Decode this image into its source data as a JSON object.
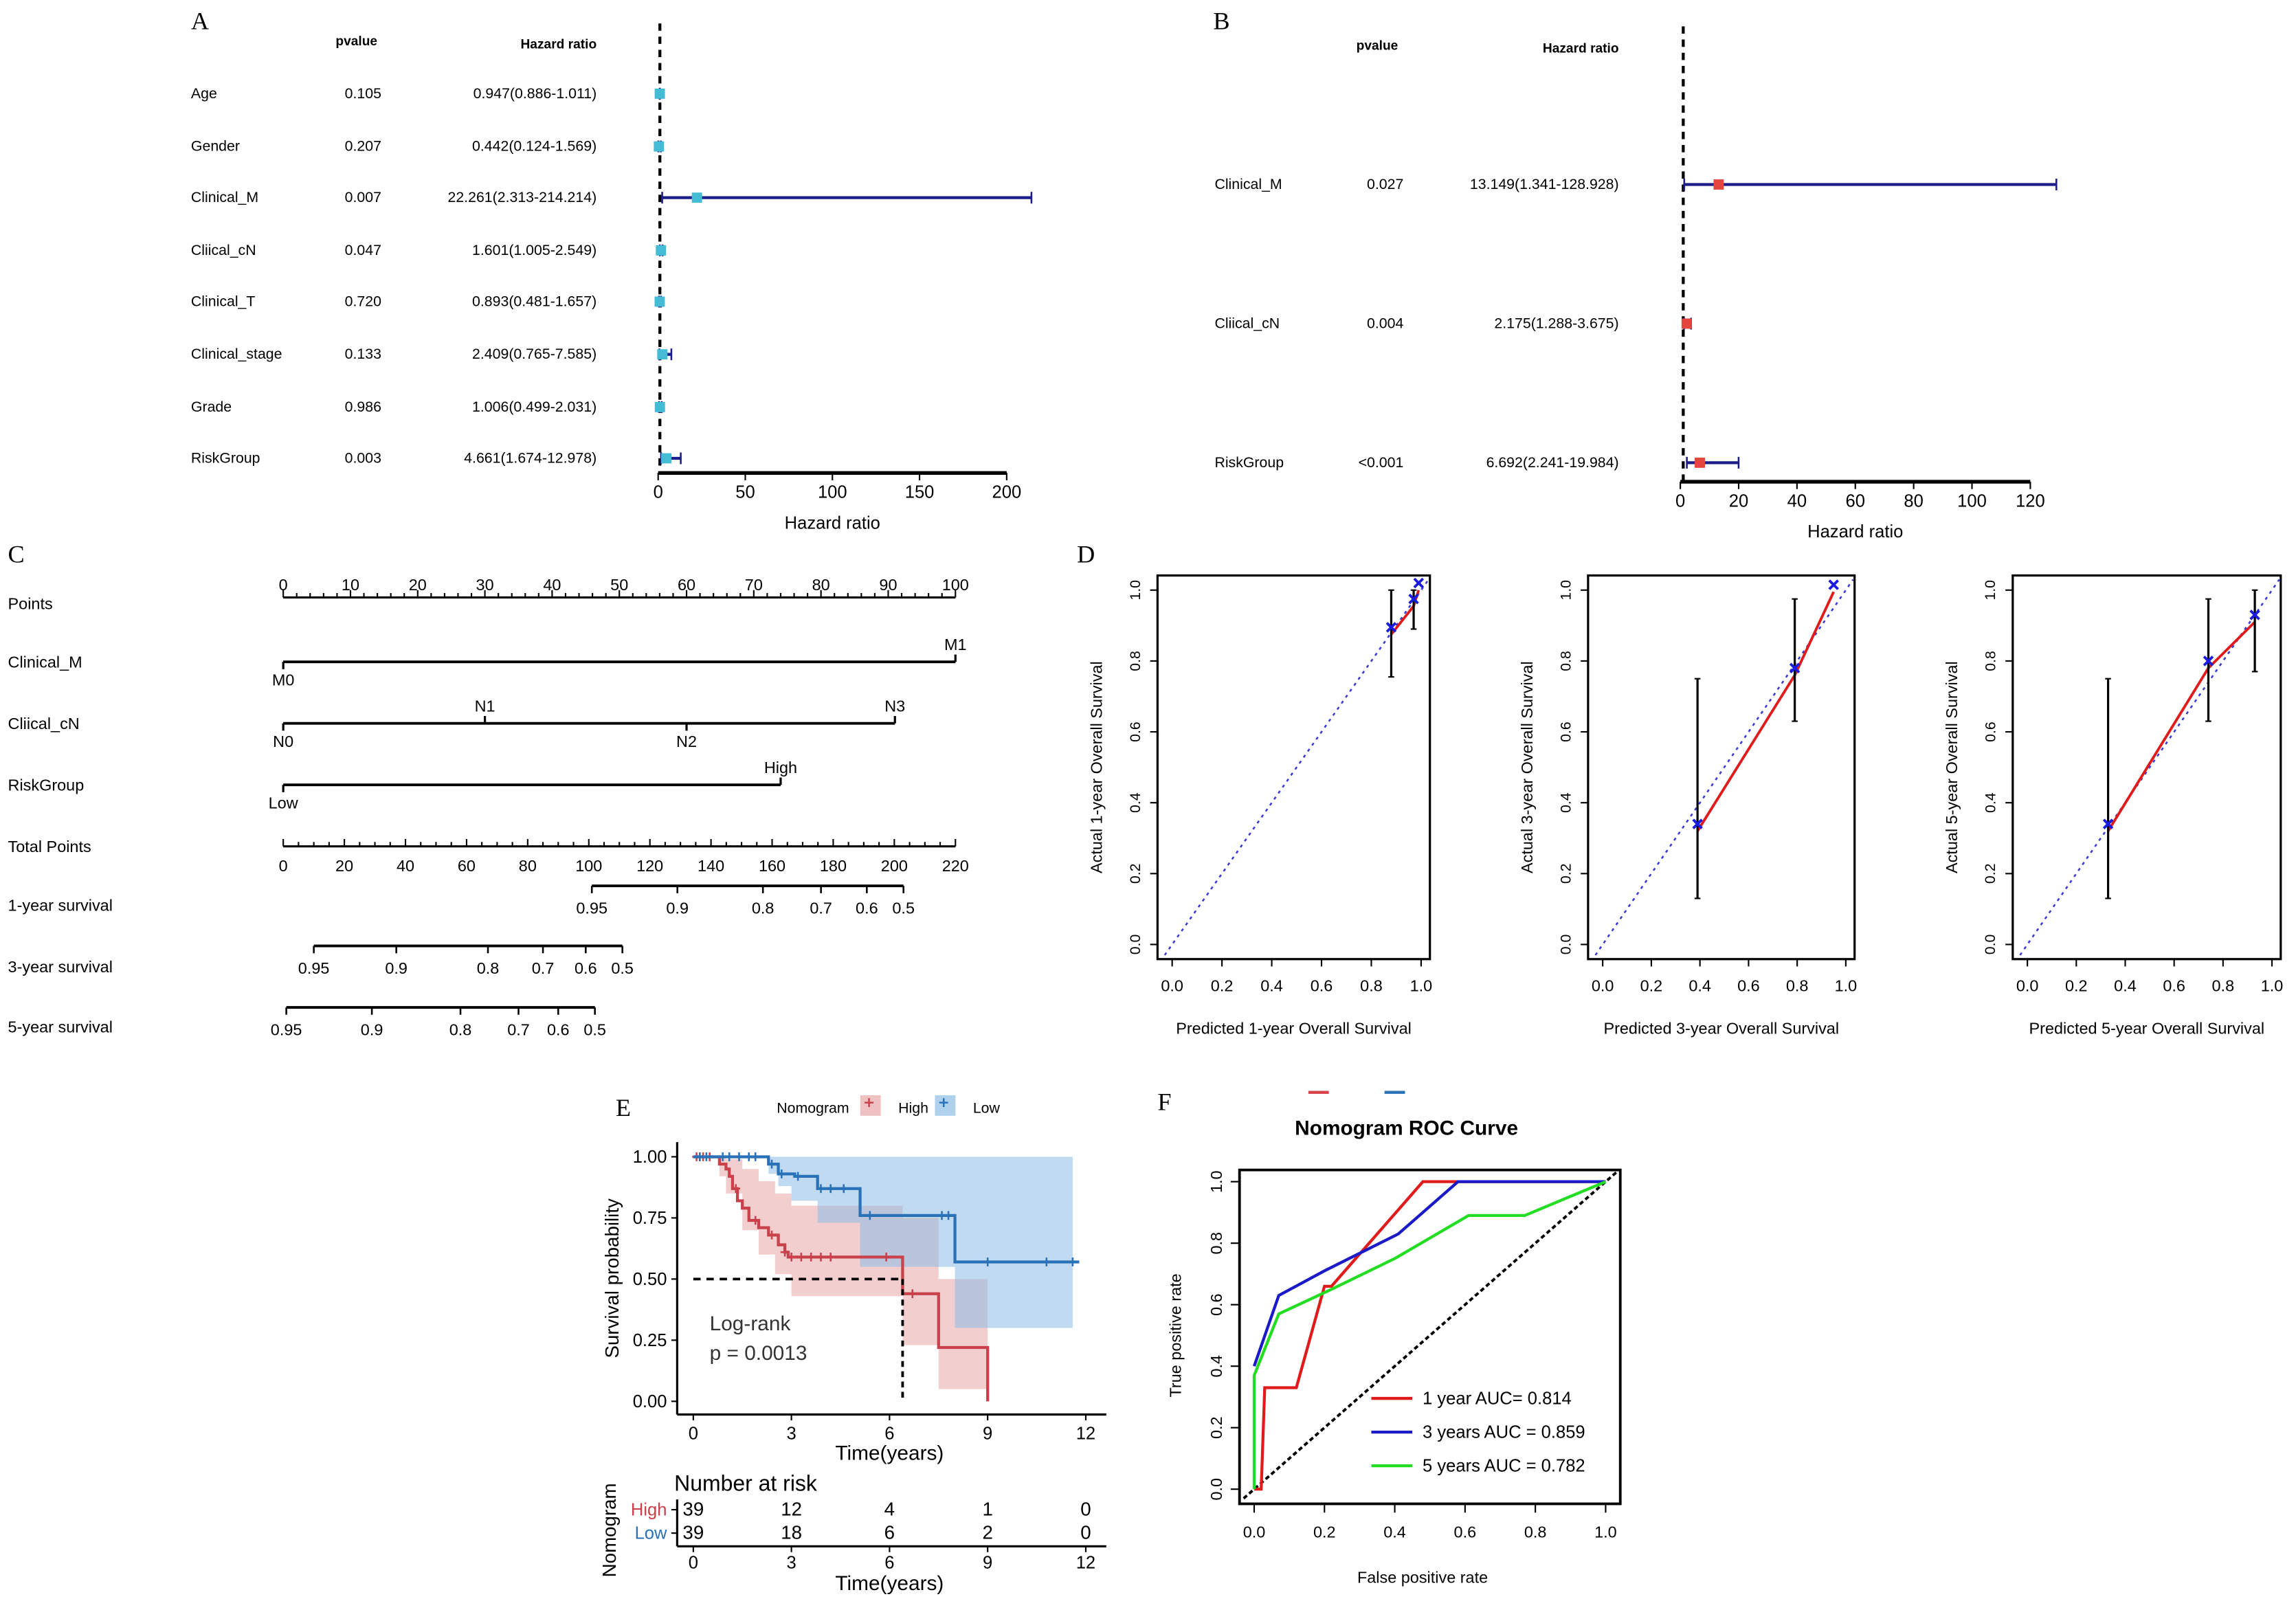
{
  "panel_labels": [
    "A",
    "B",
    "C",
    "D",
    "E",
    "F"
  ],
  "chart_data": [
    {
      "type": "forest",
      "panel": "A",
      "header_pvalue": "pvalue",
      "header_hr": "Hazard ratio",
      "xlabel": "Hazard ratio",
      "xlim": [
        0,
        200
      ],
      "xticks": [
        "0",
        "50",
        "100",
        "150",
        "200"
      ],
      "reference_line": 1,
      "marker_color": "#45bcd6",
      "line_color": "#1c1c8a",
      "rows": [
        {
          "name": "Age",
          "pvalue": "0.105",
          "hr_text": "0.947(0.886-1.011)",
          "hr": 0.947,
          "lo": 0.886,
          "hi": 1.011
        },
        {
          "name": "Gender",
          "pvalue": "0.207",
          "hr_text": "0.442(0.124-1.569)",
          "hr": 0.442,
          "lo": 0.124,
          "hi": 1.569
        },
        {
          "name": "Clinical_M",
          "pvalue": "0.007",
          "hr_text": "22.261(2.313-214.214)",
          "hr": 22.261,
          "lo": 2.313,
          "hi": 214.214
        },
        {
          "name": "Cliical_cN",
          "pvalue": "0.047",
          "hr_text": "1.601(1.005-2.549)",
          "hr": 1.601,
          "lo": 1.005,
          "hi": 2.549
        },
        {
          "name": "Clinical_T",
          "pvalue": "0.720",
          "hr_text": "0.893(0.481-1.657)",
          "hr": 0.893,
          "lo": 0.481,
          "hi": 1.657
        },
        {
          "name": "Clinical_stage",
          "pvalue": "0.133",
          "hr_text": "2.409(0.765-7.585)",
          "hr": 2.409,
          "lo": 0.765,
          "hi": 7.585
        },
        {
          "name": "Grade",
          "pvalue": "0.986",
          "hr_text": "1.006(0.499-2.031)",
          "hr": 1.006,
          "lo": 0.499,
          "hi": 2.031
        },
        {
          "name": "RiskGroup",
          "pvalue": "0.003",
          "hr_text": "4.661(1.674-12.978)",
          "hr": 4.661,
          "lo": 1.674,
          "hi": 12.978
        }
      ]
    },
    {
      "type": "forest",
      "panel": "B",
      "header_pvalue": "pvalue",
      "header_hr": "Hazard ratio",
      "xlabel": "Hazard ratio",
      "xlim": [
        0,
        120
      ],
      "xticks": [
        "0",
        "20",
        "40",
        "60",
        "80",
        "100",
        "120"
      ],
      "reference_line": 1,
      "marker_color": "#e2463c",
      "line_color": "#1c1c8a",
      "rows": [
        {
          "name": "Clinical_M",
          "pvalue": "0.027",
          "hr_text": "13.149(1.341-128.928)",
          "hr": 13.149,
          "lo": 1.341,
          "hi": 128.928
        },
        {
          "name": "Cliical_cN",
          "pvalue": "0.004",
          "hr_text": "2.175(1.288-3.675)",
          "hr": 2.175,
          "lo": 1.288,
          "hi": 3.675
        },
        {
          "name": "RiskGroup",
          "pvalue": "<0.001",
          "hr_text": "6.692(2.241-19.984)",
          "hr": 6.692,
          "lo": 2.241,
          "hi": 19.984
        }
      ]
    },
    {
      "type": "nomogram",
      "panel": "C",
      "points_label": "Points",
      "points_range": [
        0,
        100
      ],
      "points_ticks": [
        "0",
        "10",
        "20",
        "30",
        "40",
        "50",
        "60",
        "70",
        "80",
        "90",
        "100"
      ],
      "variables": [
        {
          "name": "Clinical_M",
          "levels": [
            {
              "label": "M0",
              "points": 0
            },
            {
              "label": "M1",
              "points": 100
            }
          ]
        },
        {
          "name": "Cliical_cN",
          "levels": [
            {
              "label": "N0",
              "points": 0
            },
            {
              "label": "N1",
              "points": 30
            },
            {
              "label": "N2",
              "points": 60
            },
            {
              "label": "N3",
              "points": 91
            }
          ]
        },
        {
          "name": "RiskGroup",
          "levels": [
            {
              "label": "Low",
              "points": 0
            },
            {
              "label": "High",
              "points": 74
            }
          ]
        }
      ],
      "total_points_label": "Total Points",
      "total_points_range": [
        0,
        220
      ],
      "total_points_ticks": [
        "0",
        "20",
        "40",
        "60",
        "80",
        "100",
        "120",
        "140",
        "160",
        "180",
        "200",
        "220"
      ],
      "survival_scales": [
        {
          "name": "1-year survival",
          "ticks": [
            {
              "label": "0.95",
              "total_points": 101
            },
            {
              "label": "0.9",
              "total_points": 129
            },
            {
              "label": "0.8",
              "total_points": 157
            },
            {
              "label": "0.7",
              "total_points": 176
            },
            {
              "label": "0.6",
              "total_points": 191
            },
            {
              "label": "0.5",
              "total_points": 203
            }
          ]
        },
        {
          "name": "3-year survival",
          "ticks": [
            {
              "label": "0.95",
              "total_points": 10
            },
            {
              "label": "0.9",
              "total_points": 37
            },
            {
              "label": "0.8",
              "total_points": 67
            },
            {
              "label": "0.7",
              "total_points": 85
            },
            {
              "label": "0.6",
              "total_points": 99
            },
            {
              "label": "0.5",
              "total_points": 111
            }
          ]
        },
        {
          "name": "5-year survival",
          "ticks": [
            {
              "label": "0.95",
              "total_points": 1
            },
            {
              "label": "0.9",
              "total_points": 29
            },
            {
              "label": "0.8",
              "total_points": 58
            },
            {
              "label": "0.7",
              "total_points": 77
            },
            {
              "label": "0.6",
              "total_points": 90
            },
            {
              "label": "0.5",
              "total_points": 102
            }
          ]
        }
      ]
    },
    {
      "type": "scatter",
      "panel": "D",
      "subplots": [
        {
          "xlabel": "Predicted 1-year Overall Survival",
          "ylabel": "Actual 1-year Overall Survival",
          "points": [
            {
              "x": 0.88,
              "y": 0.875,
              "lo": 0.755,
              "hi": 1.0
            },
            {
              "x": 0.97,
              "y": 0.955,
              "lo": 0.89,
              "hi": 1.0
            },
            {
              "x": 0.99,
              "y": 1.0,
              "lo": 1.0,
              "hi": 1.0
            }
          ]
        },
        {
          "xlabel": "Predicted 3-year Overall Survival",
          "ylabel": "Actual 3-year Overall Survival",
          "points": [
            {
              "x": 0.39,
              "y": 0.32,
              "lo": 0.13,
              "hi": 0.75
            },
            {
              "x": 0.79,
              "y": 0.76,
              "lo": 0.63,
              "hi": 0.975
            },
            {
              "x": 0.95,
              "y": 0.995,
              "lo": 0.995,
              "hi": 0.995
            }
          ]
        },
        {
          "xlabel": "Predicted 5-year Overall Survival",
          "ylabel": "Actual 5-year Overall Survival",
          "points": [
            {
              "x": 0.33,
              "y": 0.32,
              "lo": 0.13,
              "hi": 0.75
            },
            {
              "x": 0.74,
              "y": 0.78,
              "lo": 0.63,
              "hi": 0.975
            },
            {
              "x": 0.93,
              "y": 0.91,
              "lo": 0.77,
              "hi": 1.0
            }
          ]
        }
      ],
      "xlim": [
        0,
        1
      ],
      "ylim": [
        0,
        1
      ],
      "xticks": [
        "0.0",
        "0.2",
        "0.4",
        "0.6",
        "0.8",
        "1.0"
      ],
      "yticks": [
        "0.0",
        "0.2",
        "0.4",
        "0.6",
        "0.8",
        "1.0"
      ],
      "ideal_line_color": "#3a3ad6",
      "calibration_line_color": "#e01b1b",
      "marker_color": "#1a1ae0"
    },
    {
      "type": "line",
      "panel": "E",
      "legend_title": "Nomogram",
      "series": [
        {
          "name": "High",
          "color": "#c8414b",
          "ci_color": "#e8a6a8",
          "steps": [
            [
              0,
              1
            ],
            [
              0.7,
              1
            ],
            [
              0.8,
              0.97
            ],
            [
              1.0,
              0.95
            ],
            [
              1.1,
              0.92
            ],
            [
              1.2,
              0.87
            ],
            [
              1.35,
              0.82
            ],
            [
              1.5,
              0.79
            ],
            [
              1.7,
              0.74
            ],
            [
              2.0,
              0.71
            ],
            [
              2.3,
              0.68
            ],
            [
              2.6,
              0.64
            ],
            [
              2.8,
              0.61
            ],
            [
              2.9,
              0.59
            ],
            [
              6.4,
              0.44
            ],
            [
              7.5,
              0.22
            ],
            [
              9.0,
              0.0
            ]
          ],
          "ci_upper": [
            [
              0,
              1
            ],
            [
              1.0,
              0.99
            ],
            [
              1.5,
              0.95
            ],
            [
              2.0,
              0.9
            ],
            [
              2.5,
              0.85
            ],
            [
              3.0,
              0.8
            ],
            [
              6.4,
              0.75
            ],
            [
              7.5,
              0.5
            ],
            [
              9.0,
              0.5
            ]
          ],
          "ci_lower": [
            [
              0,
              1
            ],
            [
              0.8,
              0.92
            ],
            [
              1.0,
              0.85
            ],
            [
              1.5,
              0.7
            ],
            [
              2.0,
              0.6
            ],
            [
              2.5,
              0.52
            ],
            [
              3.0,
              0.43
            ],
            [
              6.4,
              0.23
            ],
            [
              7.5,
              0.05
            ],
            [
              9.0,
              0.05
            ]
          ],
          "censored": [
            0.1,
            0.2,
            0.3,
            0.5,
            1.3,
            1.9,
            2.4,
            2.8,
            3.0,
            3.3,
            3.6,
            3.9,
            4.2,
            5.9,
            6.7
          ]
        },
        {
          "name": "Low",
          "color": "#2a72b8",
          "ci_color": "#8dbde6",
          "steps": [
            [
              0,
              1
            ],
            [
              2.3,
              0.97
            ],
            [
              2.6,
              0.93
            ],
            [
              3.1,
              0.92
            ],
            [
              3.8,
              0.87
            ],
            [
              5.1,
              0.76
            ],
            [
              8.0,
              0.57
            ],
            [
              11.8,
              0.57
            ]
          ],
          "ci_upper": [
            [
              0,
              1
            ],
            [
              11.6,
              1
            ]
          ],
          "ci_lower": [
            [
              0,
              1
            ],
            [
              2.3,
              0.93
            ],
            [
              2.6,
              0.88
            ],
            [
              3.0,
              0.82
            ],
            [
              3.8,
              0.73
            ],
            [
              5.1,
              0.55
            ],
            [
              8.0,
              0.3
            ],
            [
              11.6,
              0.3
            ]
          ],
          "censored": [
            0.2,
            0.4,
            0.9,
            1.1,
            1.4,
            1.7,
            1.9,
            2.4,
            2.7,
            3.2,
            3.9,
            4.2,
            4.6,
            5.4,
            7.6,
            7.8,
            9.0,
            10.8,
            11.6
          ]
        }
      ],
      "median_line": {
        "y": 0.5,
        "x": 6.4
      },
      "annotation": [
        "Log-rank",
        "p = 0.0013"
      ],
      "ylabel": "Survival probability",
      "xlabel": "Time(years)",
      "xlim": [
        0,
        12
      ],
      "ylim": [
        0,
        1
      ],
      "xticks": [
        "0",
        "3",
        "6",
        "9",
        "12"
      ],
      "yticks": [
        "0.00",
        "0.25",
        "0.50",
        "0.75",
        "1.00"
      ],
      "risk_table": {
        "title": "Number at risk",
        "ylabel": "Nomogram",
        "xlabel": "Time(years)",
        "times": [
          "0",
          "3",
          "6",
          "9",
          "12"
        ],
        "rows": [
          {
            "label": "High",
            "counts": [
              "39",
              "12",
              "4",
              "1",
              "0"
            ]
          },
          {
            "label": "Low",
            "counts": [
              "39",
              "18",
              "6",
              "2",
              "0"
            ]
          }
        ]
      }
    },
    {
      "type": "line",
      "panel": "F",
      "title": "Nomogram ROC Curve",
      "xlabel": "False positive rate",
      "ylabel": "True positive rate",
      "xlim": [
        0,
        1
      ],
      "ylim": [
        0,
        1
      ],
      "xticks": [
        "0.0",
        "0.2",
        "0.4",
        "0.6",
        "0.8",
        "1.0"
      ],
      "yticks": [
        "0.0",
        "0.2",
        "0.4",
        "0.6",
        "0.8",
        "1.0"
      ],
      "legend_position": "bottom-right",
      "top_legend_colors": [
        "#d8404a",
        "#2a72b8"
      ],
      "series": [
        {
          "name": "1 year AUC= 0.814",
          "color": "#e01b1b",
          "points": [
            [
              0,
              0
            ],
            [
              0.02,
              0
            ],
            [
              0.03,
              0.33
            ],
            [
              0.12,
              0.33
            ],
            [
              0.2,
              0.66
            ],
            [
              0.22,
              0.66
            ],
            [
              0.48,
              1
            ],
            [
              0.58,
              1
            ],
            [
              1,
              1
            ]
          ]
        },
        {
          "name": "3 years AUC = 0.859",
          "color": "#1a1ac8",
          "points": [
            [
              0,
              0.4
            ],
            [
              0.07,
              0.63
            ],
            [
              0.2,
              0.71
            ],
            [
              0.41,
              0.83
            ],
            [
              0.58,
              1
            ],
            [
              1,
              1
            ]
          ]
        },
        {
          "name": "5 years AUC = 0.782",
          "color": "#22dd22",
          "points": [
            [
              0,
              0
            ],
            [
              0,
              0.37
            ],
            [
              0.07,
              0.57
            ],
            [
              0.22,
              0.65
            ],
            [
              0.4,
              0.75
            ],
            [
              0.61,
              0.89
            ],
            [
              0.77,
              0.89
            ],
            [
              1,
              1
            ]
          ]
        }
      ]
    }
  ]
}
